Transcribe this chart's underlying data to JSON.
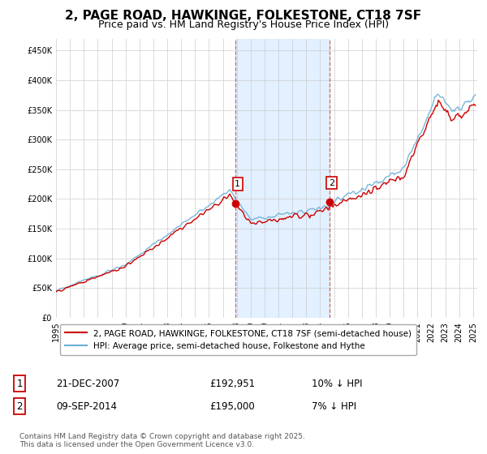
{
  "title": "2, PAGE ROAD, HAWKINGE, FOLKESTONE, CT18 7SF",
  "subtitle": "Price paid vs. HM Land Registry's House Price Index (HPI)",
  "legend_label_red": "2, PAGE ROAD, HAWKINGE, FOLKESTONE, CT18 7SF (semi-detached house)",
  "legend_label_blue": "HPI: Average price, semi-detached house, Folkestone and Hythe",
  "purchase1_date": "21-DEC-2007",
  "purchase1_price": 192951,
  "purchase2_date": "09-SEP-2014",
  "purchase2_price": 195000,
  "footnote": "Contains HM Land Registry data © Crown copyright and database right 2025.\nThis data is licensed under the Open Government Licence v3.0.",
  "hpi_color": "#6baed6",
  "price_color": "#cc0000",
  "shading_color": "#ddeeff",
  "vline_color": "#cc6666",
  "background_color": "#ffffff",
  "ylim": [
    0,
    470000
  ],
  "yticks": [
    0,
    50000,
    100000,
    150000,
    200000,
    250000,
    300000,
    350000,
    400000,
    450000
  ],
  "start_year": 1995,
  "end_year": 2025
}
